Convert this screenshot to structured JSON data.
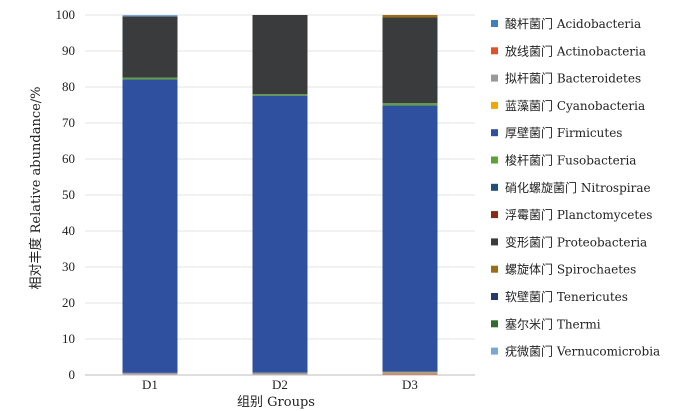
{
  "chart_data": {
    "type": "bar",
    "stacked": true,
    "xlabel": "组别 Groups",
    "ylabel": "相对丰度 Relative abundance/%",
    "ylim": [
      0,
      100
    ],
    "yticks": [
      0,
      10,
      20,
      30,
      40,
      50,
      60,
      70,
      80,
      90,
      100
    ],
    "categories": [
      "D1",
      "D2",
      "D3"
    ],
    "legend_position": "right",
    "series": [
      {
        "name": "酸杆菌门  Acidobacteria",
        "color": "#3d7fc1",
        "values": [
          0.0,
          0.0,
          0.0
        ]
      },
      {
        "name": "放线菌门  Actinobacteria",
        "color": "#e0522a",
        "values": [
          0.2,
          0.2,
          0.3
        ]
      },
      {
        "name": "拟杆菌门  Bacteroidetes",
        "color": "#999999",
        "values": [
          0.4,
          0.5,
          0.4
        ]
      },
      {
        "name": "蓝藻菌门  Cyanobacteria",
        "color": "#f0a800",
        "values": [
          0.0,
          0.0,
          0.2
        ]
      },
      {
        "name": "厚壁菌门  Firmicutes",
        "color": "#2f4f9f",
        "values": [
          81.5,
          76.9,
          74.0
        ]
      },
      {
        "name": "梭杆菌门  Fusobacteria",
        "color": "#5ea03a",
        "values": [
          0.5,
          0.4,
          0.6
        ]
      },
      {
        "name": "硝化螺旋菌门  Nitrospirae",
        "color": "#1f4f7a",
        "values": [
          0.0,
          0.0,
          0.0
        ]
      },
      {
        "name": "浮霉菌门  Planctomycetes",
        "color": "#8b2a14",
        "values": [
          0.0,
          0.0,
          0.0
        ]
      },
      {
        "name": "变形菌门  Proteobacteria",
        "color": "#3a3b3d",
        "values": [
          17.0,
          22.0,
          23.8
        ]
      },
      {
        "name": "螺旋体门  Spirochaetes",
        "color": "#9a6e16",
        "values": [
          0.0,
          0.0,
          0.7
        ]
      },
      {
        "name": "软壁菌门  Tenericutes",
        "color": "#243a6e",
        "values": [
          0.0,
          0.0,
          0.0
        ]
      },
      {
        "name": "塞尔米门  Thermi",
        "color": "#2f6b2a",
        "values": [
          0.0,
          0.0,
          0.0
        ]
      },
      {
        "name": "疣微菌门  Vernucomicrobia",
        "color": "#7aa7d6",
        "values": [
          0.4,
          0.0,
          0.0
        ]
      }
    ]
  }
}
